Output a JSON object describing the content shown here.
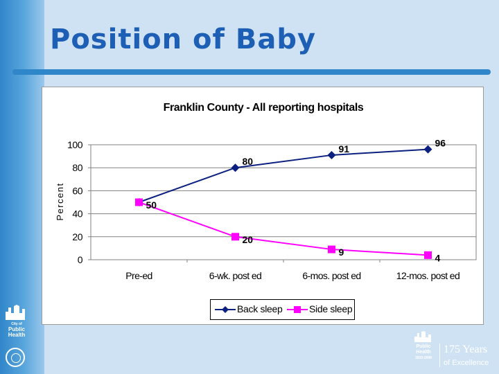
{
  "slide": {
    "title": "Position of Baby"
  },
  "branding": {
    "left_logo_lines": [
      "City of",
      "Public",
      "Health"
    ],
    "bottom_logo_lines": [
      "Public",
      "Health",
      "1833-2008"
    ],
    "years_label": "175 Years",
    "excellence_label": "of Excellence"
  },
  "colors": {
    "background": "#cfe2f3",
    "title": "#1d5fb4",
    "back_sleep": "#0b1f80",
    "side_sleep": "#ff00ff"
  },
  "chart_data": {
    "type": "line",
    "title": "Franklin County - All reporting hospitals",
    "xlabel": "",
    "ylabel": "Percent",
    "categories": [
      "Pre-ed",
      "6-wk. post ed",
      "6-mos. post ed",
      "12-mos. post ed"
    ],
    "ylim": [
      0,
      100
    ],
    "yticks": [
      0,
      20,
      40,
      60,
      80,
      100
    ],
    "grid": true,
    "legend_position": "bottom",
    "series": [
      {
        "name": "Back sleep",
        "values": [
          50,
          80,
          91,
          96
        ],
        "labels": [
          "",
          "80",
          "91",
          "96"
        ],
        "marker": "diamond",
        "color": "#0b1f80"
      },
      {
        "name": "Side sleep",
        "values": [
          50,
          20,
          9,
          4
        ],
        "labels": [
          "50",
          "20",
          "9",
          "4"
        ],
        "marker": "square",
        "color": "#ff00ff"
      }
    ]
  }
}
